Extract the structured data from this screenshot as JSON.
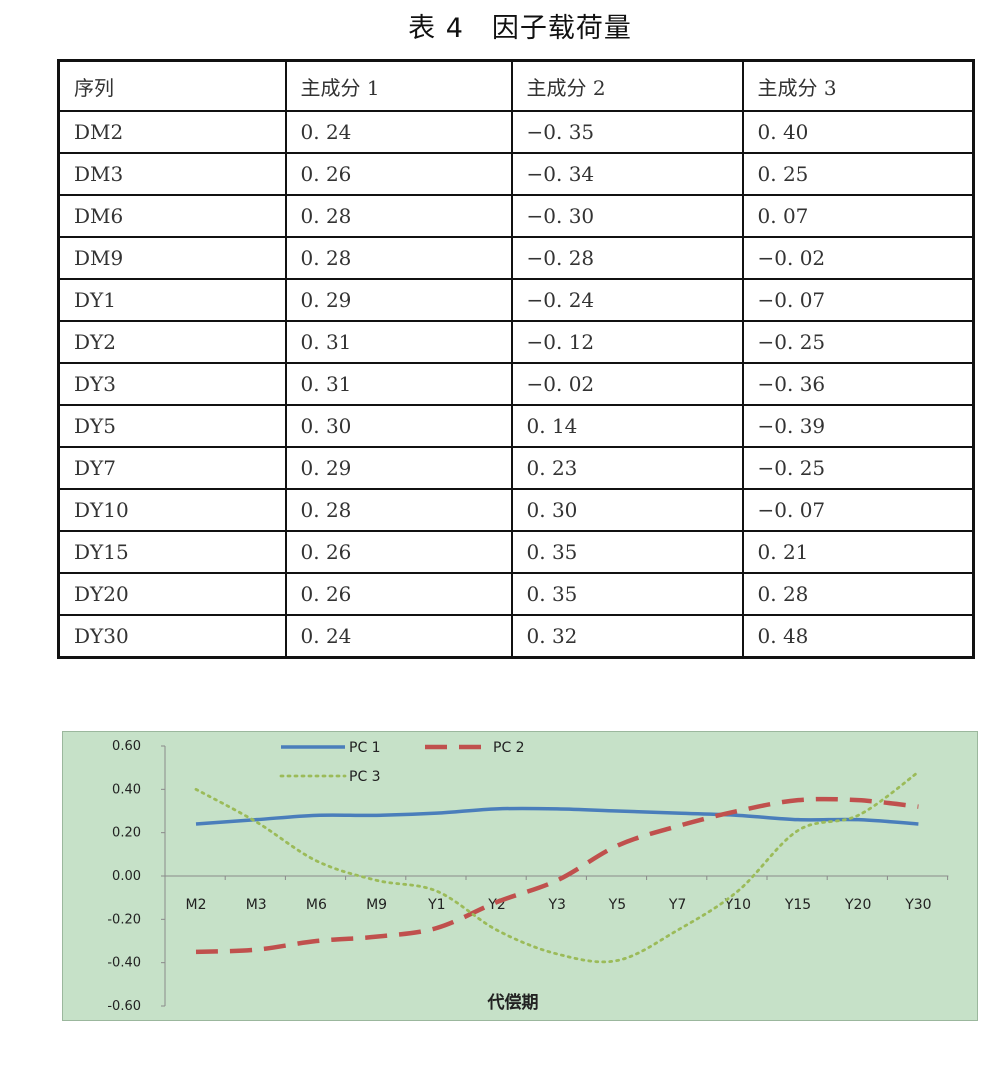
{
  "title": "表 4　因子载荷量",
  "table": {
    "headers": [
      "序列",
      "主成分 1",
      "主成分 2",
      "主成分 3"
    ],
    "rows": [
      [
        "DM2",
        "0. 24",
        "−0. 35",
        "0. 40"
      ],
      [
        "DM3",
        "0. 26",
        "−0. 34",
        "0. 25"
      ],
      [
        "DM6",
        "0. 28",
        "−0. 30",
        "0. 07"
      ],
      [
        "DM9",
        "0. 28",
        "−0. 28",
        "−0. 02"
      ],
      [
        "DY1",
        "0. 29",
        "−0. 24",
        "−0. 07"
      ],
      [
        "DY2",
        "0. 31",
        "−0. 12",
        "−0. 25"
      ],
      [
        "DY3",
        "0. 31",
        "−0. 02",
        "−0. 36"
      ],
      [
        "DY5",
        "0. 30",
        "0. 14",
        "−0. 39"
      ],
      [
        "DY7",
        "0. 29",
        "0. 23",
        "−0. 25"
      ],
      [
        "DY10",
        "0. 28",
        "0. 30",
        "−0. 07"
      ],
      [
        "DY15",
        "0. 26",
        "0. 35",
        "0. 21"
      ],
      [
        "DY20",
        "0. 26",
        "0. 35",
        "0. 28"
      ],
      [
        "DY30",
        "0. 24",
        "0. 32",
        "0. 48"
      ]
    ]
  },
  "chart_data": {
    "type": "line",
    "categories": [
      "M2",
      "M3",
      "M6",
      "M9",
      "Y1",
      "Y2",
      "Y3",
      "Y5",
      "Y7",
      "Y10",
      "Y15",
      "Y20",
      "Y30"
    ],
    "series": [
      {
        "name": "PC 1",
        "color": "#4a7ebb",
        "style": "solid",
        "values": [
          0.24,
          0.26,
          0.28,
          0.28,
          0.29,
          0.31,
          0.31,
          0.3,
          0.29,
          0.28,
          0.26,
          0.26,
          0.24
        ]
      },
      {
        "name": "PC 2",
        "color": "#c0504d",
        "style": "dashed",
        "values": [
          -0.35,
          -0.34,
          -0.3,
          -0.28,
          -0.24,
          -0.12,
          -0.02,
          0.14,
          0.23,
          0.3,
          0.35,
          0.35,
          0.32
        ]
      },
      {
        "name": "PC 3",
        "color": "#9bbb59",
        "style": "dotted",
        "values": [
          0.4,
          0.25,
          0.07,
          -0.02,
          -0.07,
          -0.25,
          -0.36,
          -0.39,
          -0.25,
          -0.07,
          0.21,
          0.28,
          0.48
        ]
      }
    ],
    "yticks": [
      "0.60",
      "0.40",
      "0.20",
      "0.00",
      "-0.20",
      "-0.40",
      "-0.60"
    ],
    "ylim": [
      -0.6,
      0.6
    ],
    "xlabel": "代偿期",
    "ylabel": "",
    "title": "",
    "grid": false,
    "legend": "top-center",
    "background": "#c6e1c8"
  }
}
